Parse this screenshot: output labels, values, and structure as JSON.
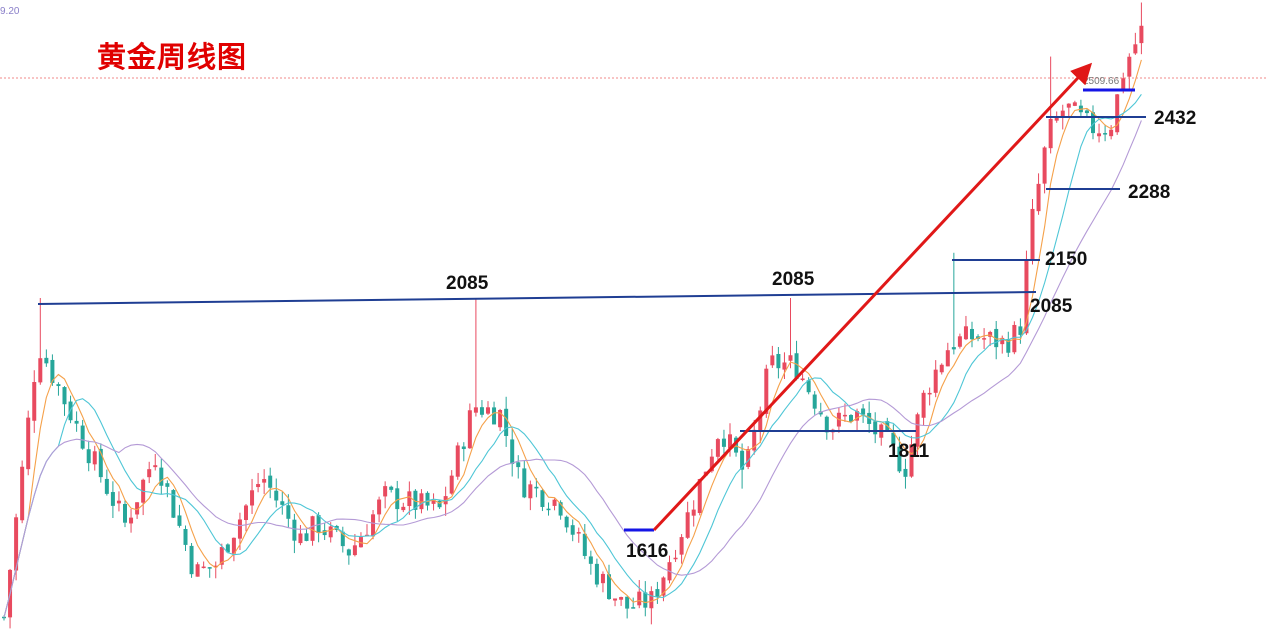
{
  "title": "黄金周线图",
  "corner_value": "9.20",
  "price_tag": "2509.66",
  "colors": {
    "title": "#e00000",
    "up": "#e84a5f",
    "down": "#26a69a",
    "ma_fast": "#f5a14a",
    "ma_mid": "#4ec6d6",
    "ma_slow": "#b49ad6",
    "level_line": "#1f3e93",
    "arrow": "#e01818",
    "highlight": "#1515e6",
    "dotted": "#f08a8a"
  },
  "chart_data": {
    "type": "candlestick",
    "title": "黄金周线图",
    "ylim": [
      1470,
      2620
    ],
    "levels": [
      {
        "label": "2085",
        "value": 2085
      },
      {
        "label": "2085",
        "value": 2085
      },
      {
        "label": "2085",
        "value": 2085
      },
      {
        "label": "2150",
        "value": 2150
      },
      {
        "label": "1811",
        "value": 1811
      },
      {
        "label": "1616",
        "value": 1616
      },
      {
        "label": "2288",
        "value": 2288
      },
      {
        "label": "2432",
        "value": 2432
      }
    ],
    "current_price": 2509.66,
    "trend_arrow": {
      "from": 1616,
      "to": 2560
    }
  }
}
